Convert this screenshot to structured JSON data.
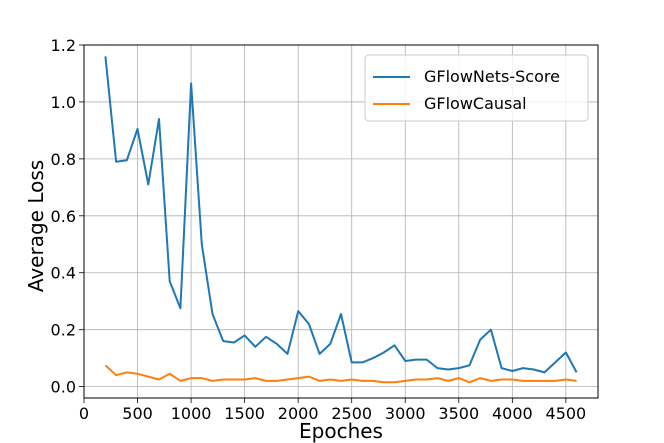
{
  "chart_data": {
    "type": "line",
    "title": "",
    "xlabel": "Epoches",
    "ylabel": "Average Loss",
    "xlim": [
      0,
      4800
    ],
    "ylim": [
      -0.04,
      1.2
    ],
    "xticks": [
      0,
      500,
      1000,
      1500,
      2000,
      2500,
      3000,
      3500,
      4000,
      4500
    ],
    "yticks": [
      0.0,
      0.2,
      0.4,
      0.6,
      0.8,
      1.0,
      1.2
    ],
    "xtick_labels": [
      "0",
      "500",
      "1000",
      "1500",
      "2000",
      "2500",
      "3000",
      "3500",
      "4000",
      "4500"
    ],
    "ytick_labels": [
      "0.0",
      "0.2",
      "0.4",
      "0.6",
      "0.8",
      "1.0",
      "1.2"
    ],
    "grid": true,
    "legend_position": "top-right",
    "series": [
      {
        "name": "GFlowNets-Score",
        "color": "#1f77b4",
        "x": [
          200,
          300,
          400,
          500,
          600,
          700,
          800,
          900,
          1000,
          1100,
          1200,
          1300,
          1400,
          1500,
          1600,
          1700,
          1800,
          1900,
          2000,
          2100,
          2200,
          2300,
          2400,
          2500,
          2600,
          2700,
          2800,
          2900,
          3000,
          3100,
          3200,
          3300,
          3400,
          3500,
          3600,
          3700,
          3800,
          3900,
          4000,
          4100,
          4200,
          4300,
          4400,
          4500,
          4600
        ],
        "y": [
          1.16,
          0.79,
          0.795,
          0.905,
          0.71,
          0.94,
          0.37,
          0.275,
          1.065,
          0.5,
          0.255,
          0.16,
          0.155,
          0.18,
          0.14,
          0.175,
          0.15,
          0.115,
          0.265,
          0.22,
          0.115,
          0.15,
          0.255,
          0.085,
          0.085,
          0.1,
          0.12,
          0.145,
          0.09,
          0.095,
          0.095,
          0.065,
          0.06,
          0.065,
          0.075,
          0.165,
          0.2,
          0.065,
          0.055,
          0.065,
          0.06,
          0.05,
          0.085,
          0.12,
          0.05
        ]
      },
      {
        "name": "GFlowCausal",
        "color": "#ff7f0e",
        "x": [
          200,
          300,
          400,
          500,
          600,
          700,
          800,
          900,
          1000,
          1100,
          1200,
          1300,
          1400,
          1500,
          1600,
          1700,
          1800,
          1900,
          2000,
          2100,
          2200,
          2300,
          2400,
          2500,
          2600,
          2700,
          2800,
          2900,
          3000,
          3100,
          3200,
          3300,
          3400,
          3500,
          3600,
          3700,
          3800,
          3900,
          4000,
          4100,
          4200,
          4300,
          4400,
          4500,
          4600
        ],
        "y": [
          0.075,
          0.04,
          0.05,
          0.045,
          0.035,
          0.025,
          0.045,
          0.02,
          0.03,
          0.03,
          0.02,
          0.025,
          0.025,
          0.025,
          0.03,
          0.02,
          0.02,
          0.025,
          0.03,
          0.035,
          0.02,
          0.025,
          0.02,
          0.025,
          0.02,
          0.02,
          0.015,
          0.015,
          0.02,
          0.025,
          0.025,
          0.03,
          0.02,
          0.03,
          0.015,
          0.03,
          0.02,
          0.025,
          0.025,
          0.02,
          0.02,
          0.02,
          0.02,
          0.025,
          0.02
        ]
      }
    ]
  }
}
